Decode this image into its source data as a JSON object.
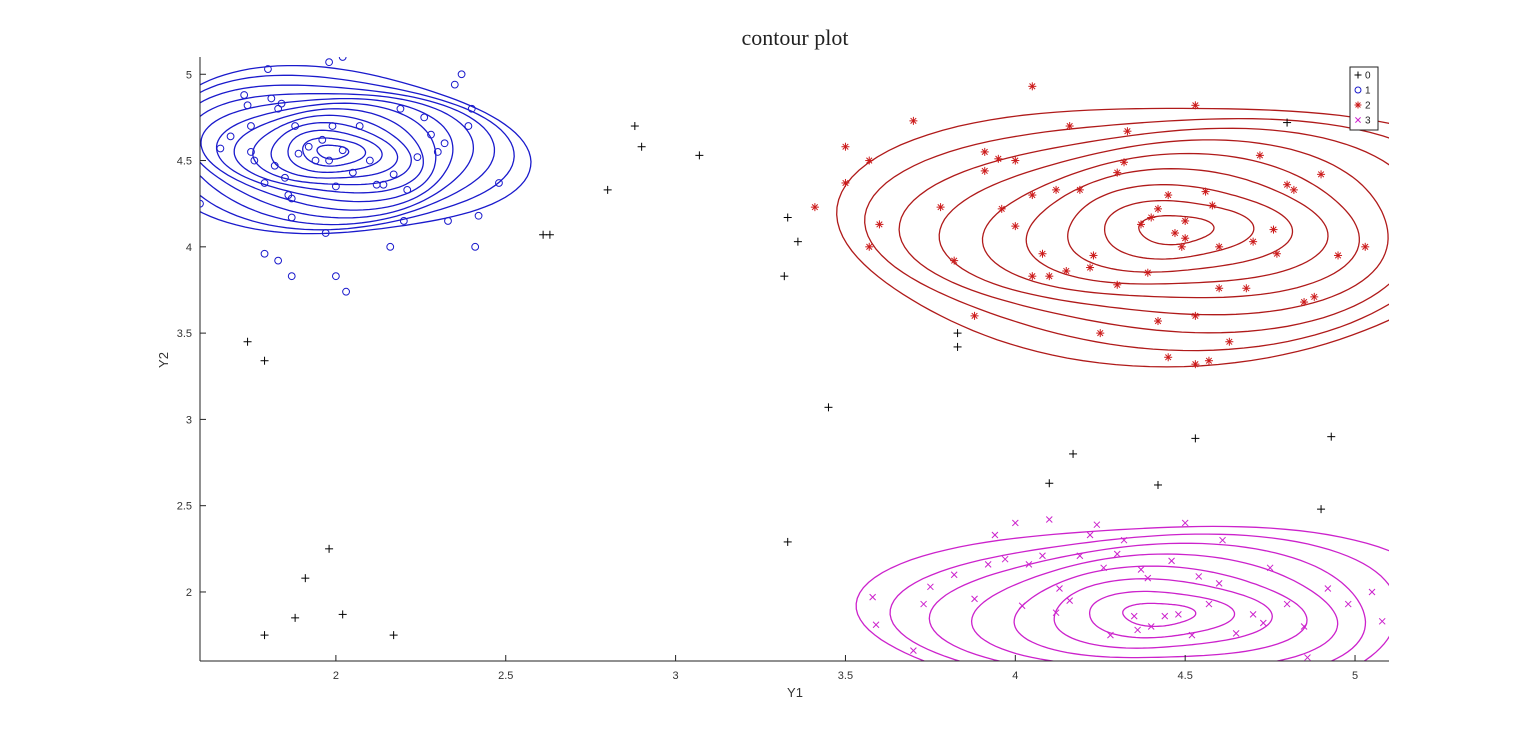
{
  "chart_data": {
    "type": "contour",
    "title": "contour plot",
    "xlabel": "Y1",
    "ylabel": "Y2",
    "xlim": [
      1.6,
      5.1
    ],
    "ylim": [
      1.6,
      5.1
    ],
    "xticks": [
      2,
      2.5,
      3,
      3.5,
      4,
      4.5,
      5
    ],
    "xtick_labels": [
      "2",
      "2.5",
      "3",
      "3.5",
      "4",
      "4.5",
      "5"
    ],
    "yticks": [
      2,
      2.5,
      3,
      3.5,
      4,
      4.5,
      5
    ],
    "ytick_labels": [
      "2",
      "2.5",
      "3",
      "3.5",
      "4",
      "4.5",
      "5"
    ],
    "legend_position": "top-right",
    "series": [
      {
        "name": "0",
        "marker": "plus",
        "color": "#000000",
        "points": [
          [
            1.74,
            3.45
          ],
          [
            1.79,
            3.34
          ],
          [
            1.79,
            1.75
          ],
          [
            1.88,
            1.85
          ],
          [
            1.91,
            2.08
          ],
          [
            1.98,
            2.25
          ],
          [
            2.02,
            1.87
          ],
          [
            2.17,
            1.75
          ],
          [
            2.61,
            4.07
          ],
          [
            2.63,
            4.07
          ],
          [
            2.8,
            4.33
          ],
          [
            2.88,
            4.7
          ],
          [
            2.9,
            4.58
          ],
          [
            3.07,
            4.53
          ],
          [
            3.32,
            3.83
          ],
          [
            3.33,
            4.17
          ],
          [
            3.33,
            2.29
          ],
          [
            3.36,
            4.03
          ],
          [
            3.45,
            3.07
          ],
          [
            3.83,
            3.5
          ],
          [
            3.83,
            3.42
          ],
          [
            4.1,
            2.63
          ],
          [
            4.17,
            2.8
          ],
          [
            4.42,
            2.62
          ],
          [
            4.53,
            2.89
          ],
          [
            4.8,
            4.72
          ],
          [
            4.9,
            2.48
          ],
          [
            4.93,
            2.9
          ]
        ]
      },
      {
        "name": "1",
        "marker": "circle",
        "color": "#1a1acc",
        "points": [
          [
            1.6,
            4.25
          ],
          [
            1.66,
            4.57
          ],
          [
            1.69,
            4.64
          ],
          [
            1.73,
            4.88
          ],
          [
            1.74,
            4.82
          ],
          [
            1.75,
            4.7
          ],
          [
            1.75,
            4.55
          ],
          [
            1.76,
            4.5
          ],
          [
            1.79,
            4.37
          ],
          [
            1.8,
            5.03
          ],
          [
            1.81,
            4.86
          ],
          [
            1.82,
            4.47
          ],
          [
            1.83,
            4.8
          ],
          [
            1.84,
            4.83
          ],
          [
            1.85,
            4.4
          ],
          [
            1.86,
            4.3
          ],
          [
            1.87,
            4.28
          ],
          [
            1.88,
            4.7
          ],
          [
            1.87,
            4.17
          ],
          [
            1.89,
            4.54
          ],
          [
            1.92,
            4.58
          ],
          [
            1.94,
            4.5
          ],
          [
            1.96,
            4.62
          ],
          [
            1.98,
            4.5
          ],
          [
            1.99,
            4.7
          ],
          [
            2.0,
            4.35
          ],
          [
            2.02,
            4.56
          ],
          [
            2.05,
            4.43
          ],
          [
            2.07,
            4.7
          ],
          [
            2.1,
            4.5
          ],
          [
            2.12,
            4.36
          ],
          [
            2.14,
            4.36
          ],
          [
            2.17,
            4.42
          ],
          [
            2.19,
            4.8
          ],
          [
            2.21,
            4.33
          ],
          [
            2.24,
            4.52
          ],
          [
            2.26,
            4.75
          ],
          [
            2.28,
            4.65
          ],
          [
            2.3,
            4.55
          ],
          [
            2.32,
            4.6
          ],
          [
            2.35,
            4.94
          ],
          [
            2.37,
            5.0
          ],
          [
            2.39,
            4.7
          ],
          [
            2.4,
            4.8
          ],
          [
            2.42,
            4.18
          ],
          [
            2.48,
            4.37
          ],
          [
            1.79,
            3.96
          ],
          [
            1.83,
            3.92
          ],
          [
            1.87,
            3.83
          ],
          [
            1.97,
            4.08
          ],
          [
            2.0,
            3.83
          ],
          [
            2.03,
            3.74
          ],
          [
            2.2,
            4.15
          ],
          [
            2.33,
            4.15
          ],
          [
            2.41,
            4.0
          ],
          [
            2.16,
            4.0
          ],
          [
            2.02,
            5.1
          ],
          [
            1.98,
            5.07
          ]
        ]
      },
      {
        "name": "2",
        "marker": "asterisk",
        "color": "#cc1a1a",
        "points": [
          [
            3.41,
            4.23
          ],
          [
            3.5,
            4.58
          ],
          [
            3.5,
            4.37
          ],
          [
            3.57,
            4.5
          ],
          [
            3.57,
            4.0
          ],
          [
            3.6,
            4.13
          ],
          [
            3.7,
            4.73
          ],
          [
            3.78,
            4.23
          ],
          [
            3.82,
            3.92
          ],
          [
            3.88,
            3.6
          ],
          [
            3.91,
            4.55
          ],
          [
            3.91,
            4.44
          ],
          [
            3.95,
            4.51
          ],
          [
            3.96,
            4.22
          ],
          [
            4.0,
            4.5
          ],
          [
            4.0,
            4.12
          ],
          [
            4.05,
            4.93
          ],
          [
            4.05,
            4.3
          ],
          [
            4.08,
            3.96
          ],
          [
            4.12,
            4.33
          ],
          [
            4.16,
            4.7
          ],
          [
            4.19,
            4.33
          ],
          [
            4.22,
            3.88
          ],
          [
            4.23,
            3.95
          ],
          [
            4.25,
            3.5
          ],
          [
            4.3,
            4.43
          ],
          [
            4.32,
            4.49
          ],
          [
            4.33,
            4.67
          ],
          [
            4.37,
            4.13
          ],
          [
            4.39,
            3.85
          ],
          [
            4.4,
            4.17
          ],
          [
            4.42,
            4.22
          ],
          [
            4.45,
            4.3
          ],
          [
            4.47,
            4.08
          ],
          [
            4.49,
            4.0
          ],
          [
            4.5,
            4.05
          ],
          [
            4.5,
            4.15
          ],
          [
            4.53,
            4.82
          ],
          [
            4.53,
            3.6
          ],
          [
            4.56,
            4.32
          ],
          [
            4.58,
            4.24
          ],
          [
            4.6,
            4.0
          ],
          [
            4.6,
            3.76
          ],
          [
            4.63,
            3.45
          ],
          [
            4.68,
            3.76
          ],
          [
            4.7,
            4.03
          ],
          [
            4.72,
            4.53
          ],
          [
            4.76,
            4.1
          ],
          [
            4.77,
            3.96
          ],
          [
            4.8,
            4.36
          ],
          [
            4.82,
            4.33
          ],
          [
            4.85,
            3.68
          ],
          [
            4.88,
            3.71
          ],
          [
            4.9,
            4.42
          ],
          [
            4.95,
            3.95
          ],
          [
            5.03,
            4.0
          ],
          [
            4.45,
            3.36
          ],
          [
            4.53,
            3.32
          ],
          [
            4.57,
            3.34
          ],
          [
            4.42,
            3.57
          ],
          [
            4.1,
            3.83
          ],
          [
            4.15,
            3.86
          ],
          [
            4.05,
            3.83
          ],
          [
            4.3,
            3.78
          ]
        ]
      },
      {
        "name": "3",
        "marker": "x",
        "color": "#cc22cc",
        "points": [
          [
            3.58,
            1.97
          ],
          [
            3.59,
            1.81
          ],
          [
            3.73,
            1.93
          ],
          [
            3.75,
            2.03
          ],
          [
            3.82,
            2.1
          ],
          [
            3.88,
            1.96
          ],
          [
            3.92,
            2.16
          ],
          [
            3.94,
            2.33
          ],
          [
            3.97,
            2.19
          ],
          [
            4.0,
            2.4
          ],
          [
            4.02,
            1.92
          ],
          [
            4.04,
            2.16
          ],
          [
            4.08,
            2.21
          ],
          [
            4.1,
            2.42
          ],
          [
            4.12,
            1.88
          ],
          [
            4.16,
            1.95
          ],
          [
            4.19,
            2.21
          ],
          [
            4.22,
            2.33
          ],
          [
            4.24,
            2.39
          ],
          [
            4.26,
            2.14
          ],
          [
            4.3,
            2.22
          ],
          [
            4.32,
            2.3
          ],
          [
            4.35,
            1.86
          ],
          [
            4.37,
            2.13
          ],
          [
            4.39,
            2.08
          ],
          [
            4.4,
            1.8
          ],
          [
            4.44,
            1.86
          ],
          [
            4.48,
            1.87
          ],
          [
            4.5,
            2.4
          ],
          [
            4.52,
            1.75
          ],
          [
            4.54,
            2.09
          ],
          [
            4.57,
            1.93
          ],
          [
            4.61,
            2.3
          ],
          [
            4.65,
            1.76
          ],
          [
            4.7,
            1.87
          ],
          [
            4.73,
            1.82
          ],
          [
            4.75,
            2.14
          ],
          [
            4.8,
            1.93
          ],
          [
            4.85,
            1.8
          ],
          [
            4.92,
            2.02
          ],
          [
            4.98,
            1.93
          ],
          [
            5.05,
            2.0
          ],
          [
            5.08,
            1.83
          ],
          [
            3.7,
            1.66
          ],
          [
            4.28,
            1.75
          ],
          [
            4.13,
            2.02
          ],
          [
            4.46,
            2.18
          ],
          [
            4.6,
            2.05
          ],
          [
            4.86,
            1.62
          ],
          [
            4.36,
            1.78
          ]
        ]
      }
    ],
    "contours": [
      {
        "series": "1",
        "color": "#1a1acc",
        "center": [
          1.99,
          4.55
        ],
        "rx": 0.53,
        "ry": 0.5,
        "skew": -0.1,
        "levels": 12
      },
      {
        "series": "2",
        "color": "#b01a1a",
        "center": [
          4.47,
          4.1
        ],
        "rx": 0.95,
        "ry": 0.78,
        "skew": 0.03,
        "levels": 9
      },
      {
        "series": "3",
        "color": "#cc22cc",
        "center": [
          4.42,
          1.87
        ],
        "rx": 0.82,
        "ry": 0.55,
        "skew": 0.0,
        "levels": 8
      }
    ]
  }
}
